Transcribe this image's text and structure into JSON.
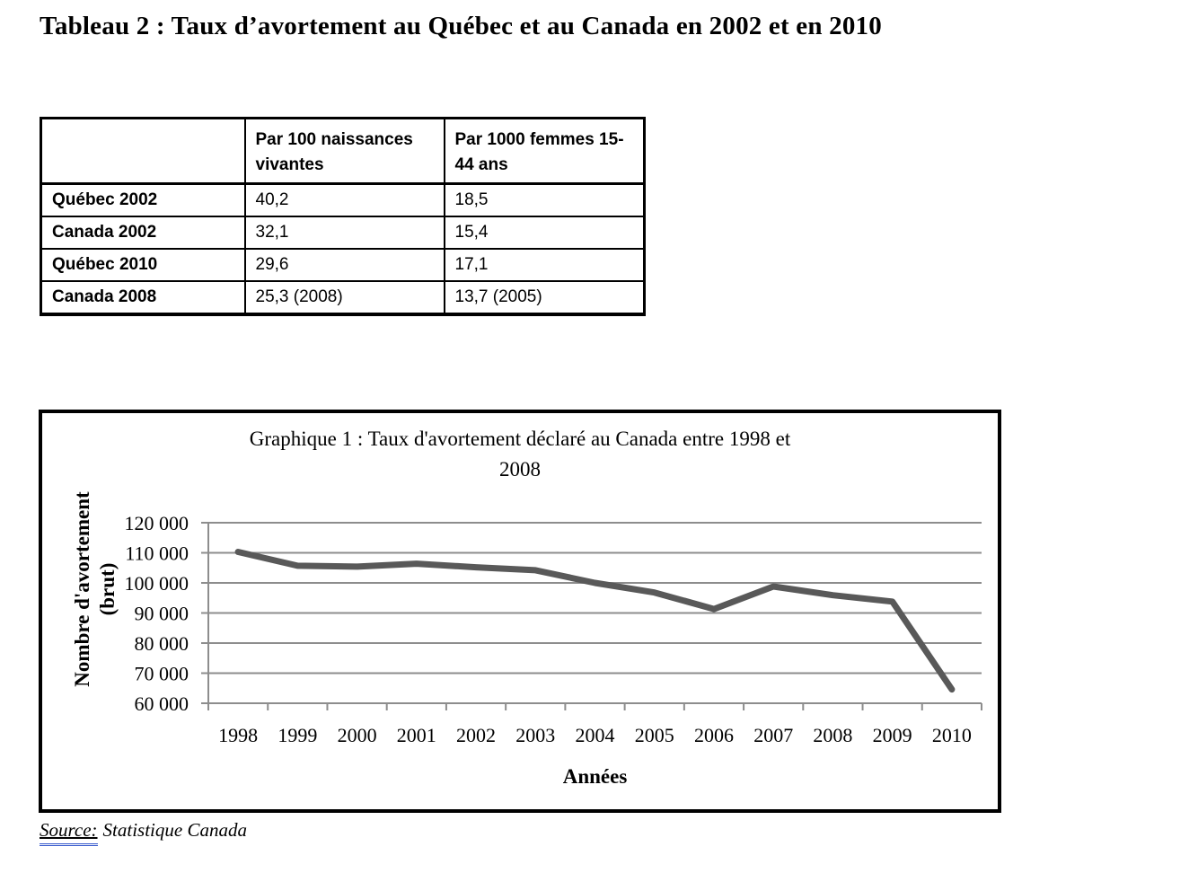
{
  "page": {
    "title": "Tableau 2 : Taux d’avortement au Québec et au Canada en 2002 et en 2010"
  },
  "table": {
    "headers": [
      "",
      "Par 100 naissances vivantes",
      "Par 1000 femmes 15-44 ans"
    ],
    "rows": [
      {
        "cells": [
          "Québec 2002",
          "40,2",
          "18,5"
        ]
      },
      {
        "cells": [
          "Canada 2002",
          "32,1",
          "15,4"
        ]
      },
      {
        "cells": [
          "Québec 2010",
          "29,6",
          "17,1"
        ]
      },
      {
        "cells": [
          "Canada 2008",
          "25,3 (2008)",
          "13,7 (2005)"
        ]
      }
    ]
  },
  "chart_data": {
    "type": "line",
    "title_line1": "Graphique 1 : Taux d'avortement déclaré au Canada entre 1998 et",
    "title_line2": "2008",
    "ylabel_line1": "Nombre d'avortement",
    "ylabel_line2": "(brut)",
    "xlabel": "Années",
    "categories": [
      "1998",
      "1999",
      "2000",
      "2001",
      "2002",
      "2003",
      "2004",
      "2005",
      "2006",
      "2007",
      "2008",
      "2009",
      "2010"
    ],
    "values": [
      110300,
      105700,
      105400,
      106400,
      105200,
      104200,
      100000,
      96800,
      91300,
      98800,
      95900,
      93800,
      64600
    ],
    "yticks": [
      "120 000",
      "110 000",
      "100 000",
      "90 000",
      "80 000",
      "70 000",
      "60 000"
    ],
    "ylim": [
      60000,
      120000
    ],
    "grid": true,
    "legend": "none",
    "line_color": "#595959",
    "grid_color": "#8d8d8d"
  },
  "footer": {
    "source_label": "Source:",
    "source_value": "Statistique Canada",
    "underline_color": "#3356cb"
  }
}
